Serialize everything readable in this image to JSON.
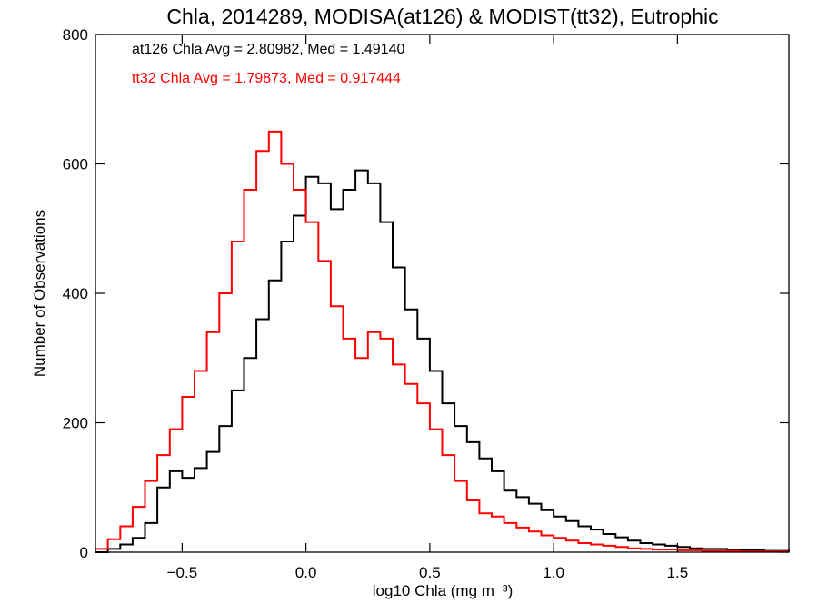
{
  "chart_data": {
    "type": "line",
    "step": true,
    "title": "Chla, 2014289, MODISA(at126) & MODIST(tt32), Eutrophic",
    "xlabel": "log10 Chla (mg m⁻³)",
    "ylabel": "Number of Observations",
    "xlim": [
      -0.85,
      1.95
    ],
    "ylim": [
      0,
      800
    ],
    "xticks": [
      -0.5,
      0.0,
      0.5,
      1.0,
      1.5
    ],
    "xtick_labels": [
      "−0.5",
      "0.0",
      "0.5",
      "1.0",
      "1.5"
    ],
    "yticks": [
      0,
      200,
      400,
      600,
      800
    ],
    "ytick_labels": [
      "0",
      "200",
      "400",
      "600",
      "800"
    ],
    "annotations": [
      {
        "text": "at126 Chla Avg = 2.80982, Med = 1.49140",
        "color": "#000000"
      },
      {
        "text": "tt32 Chla Avg = 1.79873, Med = 0.917444",
        "color": "#ff0000"
      }
    ],
    "series": [
      {
        "color": "#000000",
        "x": [
          -0.85,
          -0.8,
          -0.75,
          -0.7,
          -0.65,
          -0.6,
          -0.55,
          -0.5,
          -0.45,
          -0.4,
          -0.35,
          -0.3,
          -0.25,
          -0.2,
          -0.15,
          -0.1,
          -0.05,
          0.0,
          0.05,
          0.1,
          0.15,
          0.2,
          0.25,
          0.3,
          0.35,
          0.4,
          0.45,
          0.5,
          0.55,
          0.6,
          0.65,
          0.7,
          0.75,
          0.8,
          0.85,
          0.9,
          0.95,
          1.0,
          1.05,
          1.1,
          1.15,
          1.2,
          1.25,
          1.3,
          1.35,
          1.4,
          1.45,
          1.5,
          1.55,
          1.6,
          1.65,
          1.7,
          1.75,
          1.8,
          1.85,
          1.9,
          1.95
        ],
        "y": [
          0,
          5,
          12,
          22,
          45,
          100,
          125,
          115,
          130,
          155,
          195,
          250,
          300,
          360,
          420,
          480,
          520,
          580,
          570,
          530,
          560,
          590,
          570,
          510,
          440,
          375,
          330,
          280,
          230,
          195,
          170,
          145,
          125,
          95,
          85,
          75,
          65,
          55,
          48,
          40,
          35,
          28,
          23,
          18,
          14,
          12,
          10,
          8,
          6,
          5,
          5,
          4,
          3,
          3,
          2,
          2,
          1
        ]
      },
      {
        "color": "#ff0000",
        "x": [
          -0.85,
          -0.8,
          -0.75,
          -0.7,
          -0.65,
          -0.6,
          -0.55,
          -0.5,
          -0.45,
          -0.4,
          -0.35,
          -0.3,
          -0.25,
          -0.2,
          -0.15,
          -0.1,
          -0.05,
          0.0,
          0.05,
          0.1,
          0.15,
          0.2,
          0.25,
          0.3,
          0.35,
          0.4,
          0.45,
          0.5,
          0.55,
          0.6,
          0.65,
          0.7,
          0.75,
          0.8,
          0.85,
          0.9,
          0.95,
          1.0,
          1.05,
          1.1,
          1.15,
          1.2,
          1.25,
          1.3,
          1.35,
          1.4,
          1.45,
          1.5,
          1.55,
          1.6,
          1.65,
          1.7,
          1.75,
          1.8,
          1.85,
          1.9,
          1.95
        ],
        "y": [
          5,
          20,
          40,
          70,
          110,
          150,
          190,
          240,
          280,
          340,
          400,
          480,
          560,
          620,
          650,
          600,
          560,
          510,
          450,
          380,
          330,
          300,
          340,
          330,
          290,
          260,
          230,
          190,
          150,
          110,
          80,
          60,
          55,
          45,
          38,
          32,
          26,
          22,
          18,
          14,
          12,
          10,
          8,
          6,
          5,
          4,
          4,
          3,
          3,
          2,
          2,
          2,
          1,
          1,
          1,
          1,
          1
        ]
      }
    ]
  }
}
